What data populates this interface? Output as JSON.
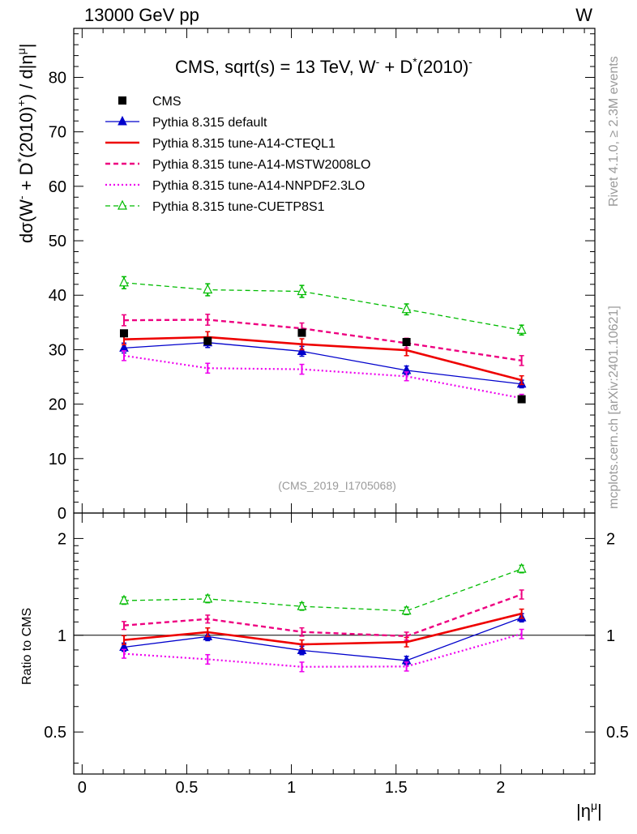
{
  "header": {
    "left": "13000 GeV pp",
    "right": "W"
  },
  "side_labels": {
    "rivet": "Rivet 4.1.0, ≥ 2.3M events",
    "mcplots": "mcplots.cern.ch [arXiv:2401.10621]"
  },
  "chart_data": {
    "type": "line",
    "title": "CMS, sqrt(s) = 13 TeV, W",
    "title_sup1": "-",
    "title_mid": " + D",
    "title_sup2": "*",
    "title_end": "(2010)",
    "title_sup3": "-",
    "analysis_id": "(CMS_2019_I1705068)",
    "xlabel": "|η",
    "xlabel_sup": "μ",
    "xlabel_end": "|",
    "ylabel": "dσ(W⁻ + D*(2010)⁺) / d|η^μ|",
    "ylabel_parts": {
      "a": "dσ(W",
      "sup1": "-",
      "b": " + D",
      "sup2": "*",
      "c": "(2010)",
      "sup3": "+",
      "d": ") / d|η",
      "sup4": "μ",
      "e": "|"
    },
    "ratio_ylabel": "Ratio to CMS",
    "xlim": [
      -0.04,
      2.45
    ],
    "ylim": [
      0,
      89
    ],
    "ratio_ylim": [
      0.37,
      2.4
    ],
    "ratio_scale": "log",
    "x_ticks": [
      "0",
      "0.5",
      "1",
      "1.5",
      "2"
    ],
    "y_ticks": [
      "0",
      "10",
      "20",
      "30",
      "40",
      "50",
      "60",
      "70",
      "80"
    ],
    "ratio_ticks": [
      "0.5",
      "1",
      "2"
    ],
    "x": [
      0.2,
      0.6,
      1.05,
      1.55,
      2.1
    ],
    "data": {
      "name": "CMS",
      "values": [
        33.0,
        31.6,
        33.1,
        31.4,
        20.9
      ],
      "color": "#000000"
    },
    "series": [
      {
        "name": "Pythia 8.315 default",
        "values": [
          30.3,
          31.3,
          29.7,
          26.2,
          23.7
        ],
        "errors": [
          0.9,
          0.9,
          0.9,
          0.8,
          0.7
        ],
        "color": "#0000cc",
        "style": "solid",
        "marker": "triangle-filled"
      },
      {
        "name": "Pythia 8.315 tune-A14-CTEQL1",
        "values": [
          31.9,
          32.3,
          31.0,
          29.9,
          24.4
        ],
        "errors": [
          1.0,
          1.0,
          1.0,
          1.0,
          0.8
        ],
        "color": "#ee0000",
        "style": "solid-thick",
        "marker": "none"
      },
      {
        "name": "Pythia 8.315 tune-A14-MSTW2008LO",
        "values": [
          35.4,
          35.5,
          33.9,
          31.2,
          28.0
        ],
        "errors": [
          1.0,
          1.0,
          1.0,
          0.9,
          0.9
        ],
        "color": "#ee0080",
        "style": "dashed",
        "marker": "none"
      },
      {
        "name": "Pythia 8.315 tune-A14-NNPDF2.3LO",
        "values": [
          28.9,
          26.6,
          26.4,
          25.1,
          21.1
        ],
        "errors": [
          0.9,
          0.9,
          0.9,
          0.8,
          0.7
        ],
        "color": "#ee00ee",
        "style": "dotted",
        "marker": "none"
      },
      {
        "name": "Pythia 8.315 tune-CUETP8S1",
        "values": [
          42.3,
          41.0,
          40.7,
          37.4,
          33.6
        ],
        "errors": [
          1.1,
          1.1,
          1.1,
          1.0,
          0.9
        ],
        "color": "#00bb00",
        "style": "dashed",
        "marker": "triangle-open"
      }
    ]
  }
}
